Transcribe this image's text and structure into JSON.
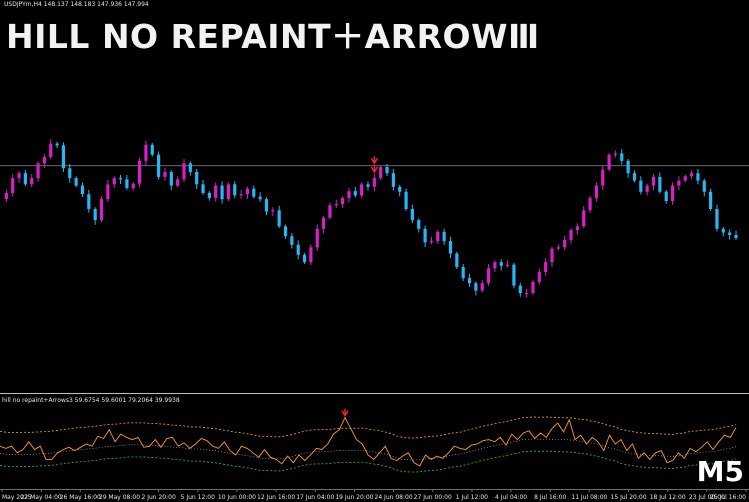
{
  "banner_title": "HILL NO REPAINT＋ARROWⅢ",
  "symbol_info": "USDJPYm,H4  148.137 148.183 147.936 147.994",
  "indicator_info": "hill no repaint+Arrows3 59.6754 59.6001 79.2064 39.9938",
  "timeframe_badge": "M5",
  "colors": {
    "background": "#000000",
    "bull_candle": "#d81fc8",
    "bear_candle": "#29b6f6",
    "hline": "#8c8c8c",
    "separator": "#bfbfbf",
    "arrow": "#ff1e3c",
    "osc_line": "#ff9a1f",
    "upper_band": "#e8901c",
    "lower_band": "#1fb71f"
  },
  "x_axis_labels": [
    "May 2025",
    "22 May 04:00",
    "26 May 16:00",
    "29 May 08:00",
    "2 Jun 20:00",
    "5 Jun 12:00",
    "10 Jun 00:00",
    "12 Jun 16:00",
    "17 Jun 04:00",
    "19 Jun 20:00",
    "24 Jun 08:00",
    "27 Jun 00:00",
    "1 Jul 12:00",
    "4 Jul 04:00",
    "8 Jul 16:00",
    "11 Jul 08:00",
    "15 Jul 20:00",
    "18 Jul 12:00",
    "23 Jul 00:00",
    "25 Jul 16:00"
  ],
  "chart_data": {
    "type": "candlestick",
    "series": [
      {
        "name": "USDJPYm,H4",
        "values": [
          228,
          238,
          262,
          270,
          252,
          262,
          286,
          296,
          318,
          315,
          278,
          262,
          250,
          236,
          212,
          194,
          228,
          252,
          262,
          260,
          246,
          253,
          290,
          316,
          300,
          264,
          272,
          250,
          260,
          286,
          272,
          252,
          238,
          230,
          250,
          228,
          252,
          234,
          236,
          245,
          232,
          228,
          208,
          210,
          184,
          168,
          154,
          138,
          126,
          150,
          180,
          198,
          218,
          220,
          230,
          241,
          234,
          252,
          248,
          262,
          280,
          270,
          248,
          240,
          212,
          194,
          180,
          158,
          160,
          175,
          160,
          140,
          118,
          100,
          92,
          80,
          92,
          116,
          126,
          120,
          122,
          88,
          76,
          76,
          94,
          110,
          126,
          148,
          150,
          162,
          178,
          184,
          210,
          230,
          250,
          276,
          300,
          302,
          290,
          270,
          258,
          240,
          250,
          264,
          240,
          225,
          250,
          258,
          265,
          270,
          258,
          240,
          212,
          180,
          174,
          170,
          165
        ]
      }
    ],
    "arrows": [
      {
        "index": 59,
        "value": 272
      },
      {
        "index": 59,
        "value": 286
      }
    ],
    "horizontal_level": 282
  },
  "oscillator": {
    "values": [
      58,
      56,
      58,
      52,
      55,
      62,
      55,
      58,
      46,
      46,
      52,
      55,
      57,
      54,
      57,
      60,
      58,
      67,
      65,
      73,
      62,
      69,
      66,
      64,
      66,
      57,
      58,
      64,
      57,
      65,
      66,
      58,
      61,
      56,
      60,
      65,
      63,
      58,
      56,
      62,
      54,
      50,
      58,
      56,
      52,
      48,
      55,
      48,
      46,
      42,
      49,
      43,
      50,
      45,
      50,
      56,
      55,
      60,
      69,
      73,
      84,
      74,
      64,
      60,
      50,
      46,
      52,
      58,
      47,
      45,
      49,
      52,
      43,
      40,
      50,
      46,
      49,
      47,
      52,
      58,
      56,
      55,
      59,
      60,
      63,
      64,
      62,
      66,
      59,
      69,
      64,
      70,
      72,
      65,
      70,
      66,
      74,
      79,
      71,
      82,
      64,
      68,
      60,
      66,
      62,
      54,
      68,
      60,
      64,
      54,
      60,
      47,
      52,
      46,
      52,
      54,
      43,
      45,
      52,
      47,
      56,
      53,
      57,
      62,
      55,
      62,
      68,
      66,
      75
    ],
    "levels": [
      79.2064,
      39.9938
    ]
  }
}
